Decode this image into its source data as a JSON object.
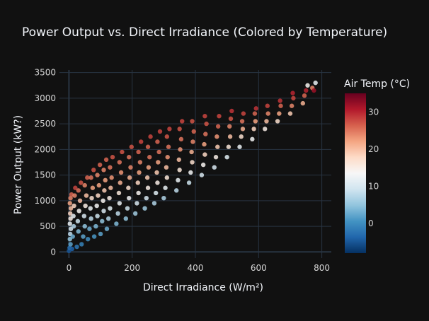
{
  "chart_data": {
    "type": "scatter",
    "title": "Power Output vs. Direct Irradiance (Colored by Temperature)",
    "xlabel": "Direct Irradiance (W/m²)",
    "ylabel": "Power Output (kW?)",
    "xlim": [
      -30,
      830
    ],
    "ylim": [
      -120,
      3550
    ],
    "x_ticks": [
      0,
      200,
      400,
      600,
      800
    ],
    "y_ticks": [
      0,
      500,
      1000,
      1500,
      2000,
      2500,
      3000,
      3500
    ],
    "grid": true,
    "background": "#111111",
    "grid_color": "#283442",
    "colorbar": {
      "title": "Air Temp (°C)",
      "range": [
        -8,
        35
      ],
      "ticks": [
        0,
        10,
        20,
        30
      ],
      "colorscale": "RdBu_r",
      "stops": [
        "#053061",
        "#2166ac",
        "#4393c3",
        "#92c5de",
        "#d1e5f0",
        "#f7f7f7",
        "#fddbc7",
        "#f4a582",
        "#d6604d",
        "#b2182b",
        "#67001f"
      ]
    },
    "series": [
      {
        "points": [
          [
            0,
            20,
            -5
          ],
          [
            2,
            80,
            -3
          ],
          [
            5,
            150,
            2
          ],
          [
            3,
            250,
            5
          ],
          [
            4,
            350,
            8
          ],
          [
            6,
            450,
            10
          ],
          [
            3,
            550,
            12
          ],
          [
            5,
            650,
            15
          ],
          [
            4,
            750,
            18
          ],
          [
            6,
            850,
            20
          ],
          [
            3,
            950,
            22
          ],
          [
            5,
            1050,
            24
          ],
          [
            8,
            1120,
            26
          ],
          [
            10,
            60,
            -4
          ],
          [
            12,
            300,
            3
          ],
          [
            15,
            500,
            7
          ],
          [
            14,
            700,
            12
          ],
          [
            16,
            900,
            18
          ],
          [
            18,
            1100,
            24
          ],
          [
            20,
            1250,
            28
          ],
          [
            25,
            100,
            -2
          ],
          [
            30,
            400,
            4
          ],
          [
            28,
            600,
            9
          ],
          [
            32,
            800,
            14
          ],
          [
            35,
            1000,
            20
          ],
          [
            30,
            1200,
            25
          ],
          [
            38,
            1350,
            27
          ],
          [
            40,
            150,
            -1
          ],
          [
            45,
            300,
            2
          ],
          [
            50,
            500,
            5
          ],
          [
            48,
            700,
            10
          ],
          [
            52,
            900,
            15
          ],
          [
            55,
            1100,
            20
          ],
          [
            50,
            1300,
            24
          ],
          [
            58,
            1450,
            26
          ],
          [
            60,
            250,
            0
          ],
          [
            65,
            450,
            3
          ],
          [
            70,
            650,
            8
          ],
          [
            68,
            850,
            12
          ],
          [
            72,
            1050,
            17
          ],
          [
            75,
            1250,
            22
          ],
          [
            70,
            1450,
            25
          ],
          [
            78,
            1600,
            27
          ],
          [
            80,
            300,
            1
          ],
          [
            85,
            500,
            4
          ],
          [
            90,
            700,
            9
          ],
          [
            88,
            900,
            13
          ],
          [
            92,
            1100,
            18
          ],
          [
            95,
            1300,
            22
          ],
          [
            90,
            1500,
            24
          ],
          [
            98,
            1700,
            26
          ],
          [
            100,
            350,
            2
          ],
          [
            105,
            600,
            5
          ],
          [
            110,
            800,
            10
          ],
          [
            108,
            1000,
            14
          ],
          [
            112,
            1200,
            19
          ],
          [
            115,
            1400,
            22
          ],
          [
            110,
            1600,
            24
          ],
          [
            118,
            1800,
            26
          ],
          [
            120,
            450,
            3
          ],
          [
            125,
            650,
            7
          ],
          [
            130,
            850,
            11
          ],
          [
            128,
            1050,
            15
          ],
          [
            132,
            1250,
            20
          ],
          [
            135,
            1450,
            23
          ],
          [
            130,
            1650,
            25
          ],
          [
            138,
            1850,
            27
          ],
          [
            150,
            550,
            4
          ],
          [
            155,
            750,
            8
          ],
          [
            160,
            950,
            12
          ],
          [
            158,
            1150,
            16
          ],
          [
            162,
            1350,
            21
          ],
          [
            165,
            1550,
            23
          ],
          [
            160,
            1750,
            25
          ],
          [
            168,
            1950,
            27
          ],
          [
            180,
            650,
            5
          ],
          [
            185,
            850,
            9
          ],
          [
            190,
            1050,
            13
          ],
          [
            188,
            1250,
            17
          ],
          [
            192,
            1450,
            21
          ],
          [
            195,
            1650,
            24
          ],
          [
            190,
            1850,
            25
          ],
          [
            198,
            2050,
            27
          ],
          [
            210,
            750,
            6
          ],
          [
            215,
            950,
            10
          ],
          [
            220,
            1150,
            14
          ],
          [
            218,
            1350,
            18
          ],
          [
            222,
            1550,
            22
          ],
          [
            225,
            1750,
            24
          ],
          [
            220,
            1950,
            26
          ],
          [
            228,
            2150,
            28
          ],
          [
            240,
            850,
            6
          ],
          [
            245,
            1050,
            10
          ],
          [
            250,
            1250,
            15
          ],
          [
            248,
            1450,
            19
          ],
          [
            252,
            1650,
            22
          ],
          [
            255,
            1850,
            25
          ],
          [
            250,
            2050,
            26
          ],
          [
            258,
            2250,
            28
          ],
          [
            270,
            950,
            7
          ],
          [
            275,
            1150,
            11
          ],
          [
            280,
            1350,
            15
          ],
          [
            278,
            1550,
            19
          ],
          [
            282,
            1750,
            22
          ],
          [
            285,
            1950,
            25
          ],
          [
            280,
            2150,
            26
          ],
          [
            288,
            2350,
            28
          ],
          [
            300,
            1050,
            7
          ],
          [
            305,
            1250,
            12
          ],
          [
            310,
            1450,
            16
          ],
          [
            308,
            1650,
            20
          ],
          [
            312,
            1850,
            23
          ],
          [
            315,
            2050,
            25
          ],
          [
            310,
            2250,
            27
          ],
          [
            318,
            2400,
            28
          ],
          [
            340,
            1200,
            8
          ],
          [
            345,
            1400,
            12
          ],
          [
            350,
            1600,
            16
          ],
          [
            348,
            1800,
            20
          ],
          [
            352,
            2000,
            23
          ],
          [
            355,
            2200,
            25
          ],
          [
            350,
            2400,
            27
          ],
          [
            358,
            2550,
            28
          ],
          [
            380,
            1350,
            9
          ],
          [
            385,
            1550,
            13
          ],
          [
            390,
            1750,
            17
          ],
          [
            388,
            1950,
            21
          ],
          [
            392,
            2150,
            24
          ],
          [
            395,
            2350,
            26
          ],
          [
            390,
            2550,
            27
          ],
          [
            420,
            1500,
            10
          ],
          [
            425,
            1700,
            14
          ],
          [
            430,
            1900,
            18
          ],
          [
            428,
            2100,
            22
          ],
          [
            432,
            2300,
            25
          ],
          [
            435,
            2500,
            27
          ],
          [
            430,
            2650,
            28
          ],
          [
            460,
            1650,
            10
          ],
          [
            465,
            1850,
            15
          ],
          [
            470,
            2050,
            19
          ],
          [
            468,
            2250,
            23
          ],
          [
            472,
            2450,
            26
          ],
          [
            475,
            2650,
            28
          ],
          [
            500,
            1850,
            11
          ],
          [
            505,
            2050,
            16
          ],
          [
            510,
            2250,
            20
          ],
          [
            508,
            2450,
            24
          ],
          [
            512,
            2600,
            27
          ],
          [
            515,
            2750,
            29
          ],
          [
            540,
            2050,
            12
          ],
          [
            545,
            2250,
            17
          ],
          [
            550,
            2400,
            21
          ],
          [
            548,
            2550,
            25
          ],
          [
            552,
            2700,
            28
          ],
          [
            580,
            2200,
            13
          ],
          [
            585,
            2400,
            18
          ],
          [
            590,
            2550,
            22
          ],
          [
            588,
            2700,
            26
          ],
          [
            592,
            2800,
            29
          ],
          [
            620,
            2400,
            15
          ],
          [
            625,
            2550,
            20
          ],
          [
            630,
            2700,
            24
          ],
          [
            628,
            2850,
            28
          ],
          [
            660,
            2550,
            17
          ],
          [
            665,
            2700,
            22
          ],
          [
            670,
            2850,
            26
          ],
          [
            668,
            2950,
            29
          ],
          [
            700,
            2700,
            19
          ],
          [
            705,
            2850,
            24
          ],
          [
            710,
            3000,
            28
          ],
          [
            708,
            3100,
            30
          ],
          [
            740,
            2900,
            21
          ],
          [
            745,
            3050,
            26
          ],
          [
            750,
            3150,
            30
          ],
          [
            755,
            3250,
            14
          ],
          [
            770,
            3200,
            24
          ],
          [
            775,
            3150,
            32
          ],
          [
            780,
            3300,
            12
          ]
        ]
      }
    ]
  }
}
